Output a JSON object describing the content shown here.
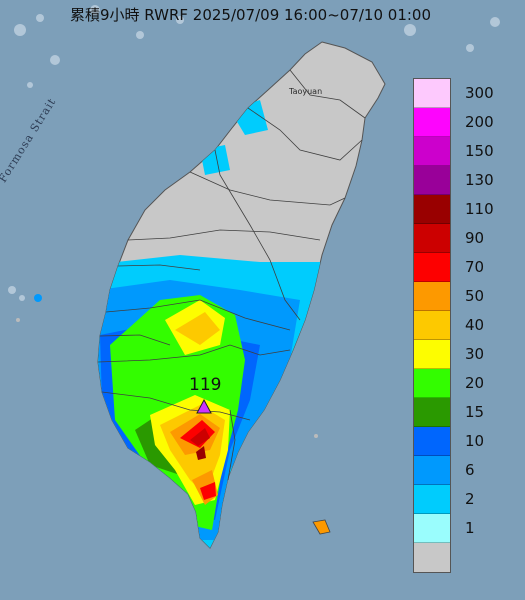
{
  "title": "累積9小時 RWRF 2025/07/09 16:00~07/10 01:00",
  "strait_label": "Formosa Strait",
  "city_label": "Taoyuan",
  "max_marker": {
    "value": "119",
    "icon": "triangle-marker-icon",
    "color": "#cc33ff"
  },
  "colors": {
    "sea": "#7d9fb9",
    "land": "#c8c8c8"
  },
  "legend": [
    {
      "label": "300",
      "color": "#fdc9fd"
    },
    {
      "label": "200",
      "color": "#fd05fd"
    },
    {
      "label": "150",
      "color": "#cc00cc"
    },
    {
      "label": "130",
      "color": "#990099"
    },
    {
      "label": "110",
      "color": "#990000"
    },
    {
      "label": "90",
      "color": "#cc0000"
    },
    {
      "label": "70",
      "color": "#fd0000"
    },
    {
      "label": "50",
      "color": "#fd9900"
    },
    {
      "label": "40",
      "color": "#fdc900"
    },
    {
      "label": "30",
      "color": "#fdfd00"
    },
    {
      "label": "20",
      "color": "#33fd00"
    },
    {
      "label": "15",
      "color": "#2a9900"
    },
    {
      "label": "10",
      "color": "#0066fd"
    },
    {
      "label": "6",
      "color": "#0099fd"
    },
    {
      "label": "2",
      "color": "#00ccfd"
    },
    {
      "label": "1",
      "color": "#9afdfd"
    },
    {
      "label": "",
      "color": "#c8c8c8"
    }
  ]
}
